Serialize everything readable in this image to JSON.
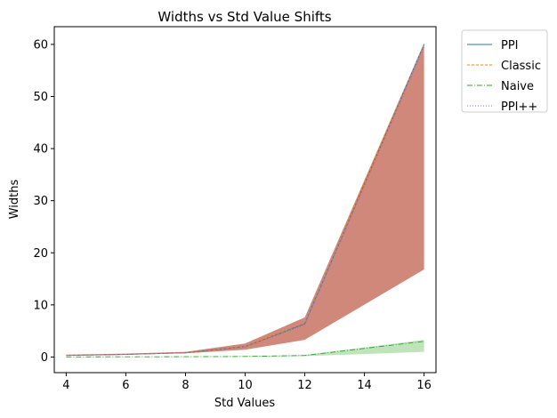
{
  "chart_data": {
    "type": "line",
    "title": "Widths vs Std Value Shifts",
    "xlabel": "Std Values",
    "ylabel": "Widths",
    "x": [
      4,
      6,
      8,
      10,
      12,
      16
    ],
    "xlim": [
      3.6,
      16.4
    ],
    "ylim": [
      -3,
      63.4
    ],
    "xticks": [
      4,
      6,
      8,
      10,
      12,
      14,
      16
    ],
    "yticks": [
      0,
      10,
      20,
      30,
      40,
      50,
      60
    ],
    "grid": false,
    "legend_position": "outside-top-right",
    "series": [
      {
        "name": "PPI",
        "style": "solid",
        "color": "#1f77b4",
        "values": [
          0.3,
          0.5,
          0.8,
          2.0,
          6.4,
          60.0
        ]
      },
      {
        "name": "Classic",
        "style": "dashed",
        "color": "#ff7f0e",
        "values": [
          0.3,
          0.5,
          0.8,
          2.0,
          6.5,
          60.0
        ]
      },
      {
        "name": "Naive",
        "style": "dashdot",
        "color": "#2ca02c",
        "values": [
          0.02,
          0.03,
          0.05,
          0.1,
          0.3,
          3.0
        ]
      },
      {
        "name": "PPI++",
        "style": "dotted",
        "color": "#9467bd",
        "values": [
          0.3,
          0.5,
          0.8,
          1.9,
          6.2,
          59.5
        ]
      }
    ],
    "bands": [
      {
        "color": "#c0604d",
        "opacity": 0.75,
        "lower": [
          0.25,
          0.45,
          0.7,
          1.4,
          3.3,
          16.8
        ],
        "upper": [
          0.45,
          0.65,
          1.0,
          2.6,
          7.6,
          60.3
        ]
      },
      {
        "color": "#7fc97a",
        "opacity": 0.5,
        "lower": [
          0.01,
          0.02,
          0.03,
          0.05,
          0.15,
          1.0
        ],
        "upper": [
          0.03,
          0.05,
          0.08,
          0.15,
          0.4,
          3.3
        ]
      }
    ]
  }
}
